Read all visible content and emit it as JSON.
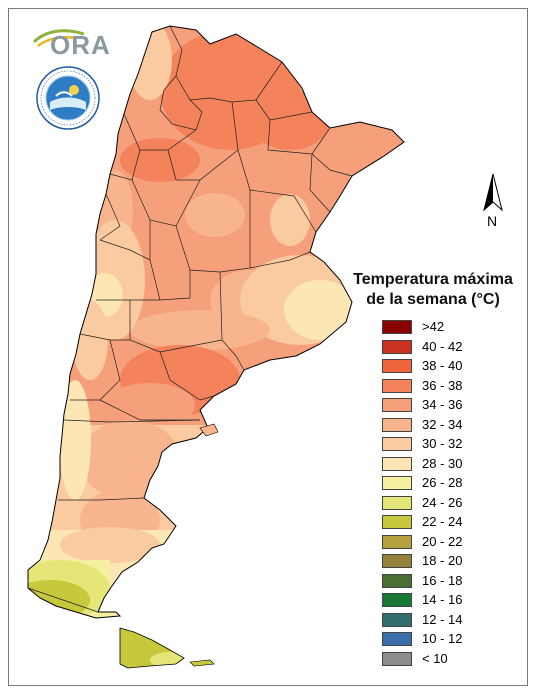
{
  "logo": {
    "text": "ORA",
    "icon": "ora-logo"
  },
  "seal": {
    "icon": "smn-seal",
    "text": "SERVICIO METEOROLÓGICO NACIONAL · ARGENTINA"
  },
  "north_arrow": {
    "label": "N"
  },
  "legend": {
    "title_line1": "Temperatura máxima",
    "title_line2": "de la semana (°C)",
    "items": [
      {
        "label": ">42",
        "color": "#8b0000"
      },
      {
        "label": "40 - 42",
        "color": "#c8321e"
      },
      {
        "label": "38 - 40",
        "color": "#f0643c"
      },
      {
        "label": "36 - 38",
        "color": "#f4825a"
      },
      {
        "label": "34 - 36",
        "color": "#f5a07a"
      },
      {
        "label": "32 - 34",
        "color": "#f8b48c"
      },
      {
        "label": "30 - 32",
        "color": "#facaa0"
      },
      {
        "label": "28 - 30",
        "color": "#fbe6b4"
      },
      {
        "label": "26 - 28",
        "color": "#f5f0a0"
      },
      {
        "label": "24 - 26",
        "color": "#e6e678"
      },
      {
        "label": "22 - 24",
        "color": "#c8c83c"
      },
      {
        "label": "20 - 22",
        "color": "#b4a03c"
      },
      {
        "label": "18 - 20",
        "color": "#96823c"
      },
      {
        "label": "16 - 18",
        "color": "#4b6e32"
      },
      {
        "label": "14 - 16",
        "color": "#197832"
      },
      {
        "label": "12 - 14",
        "color": "#326e6e"
      },
      {
        "label": "10 - 12",
        "color": "#3c6eaa"
      },
      {
        "label": "< 10",
        "color": "#8c8c8c"
      }
    ]
  }
}
